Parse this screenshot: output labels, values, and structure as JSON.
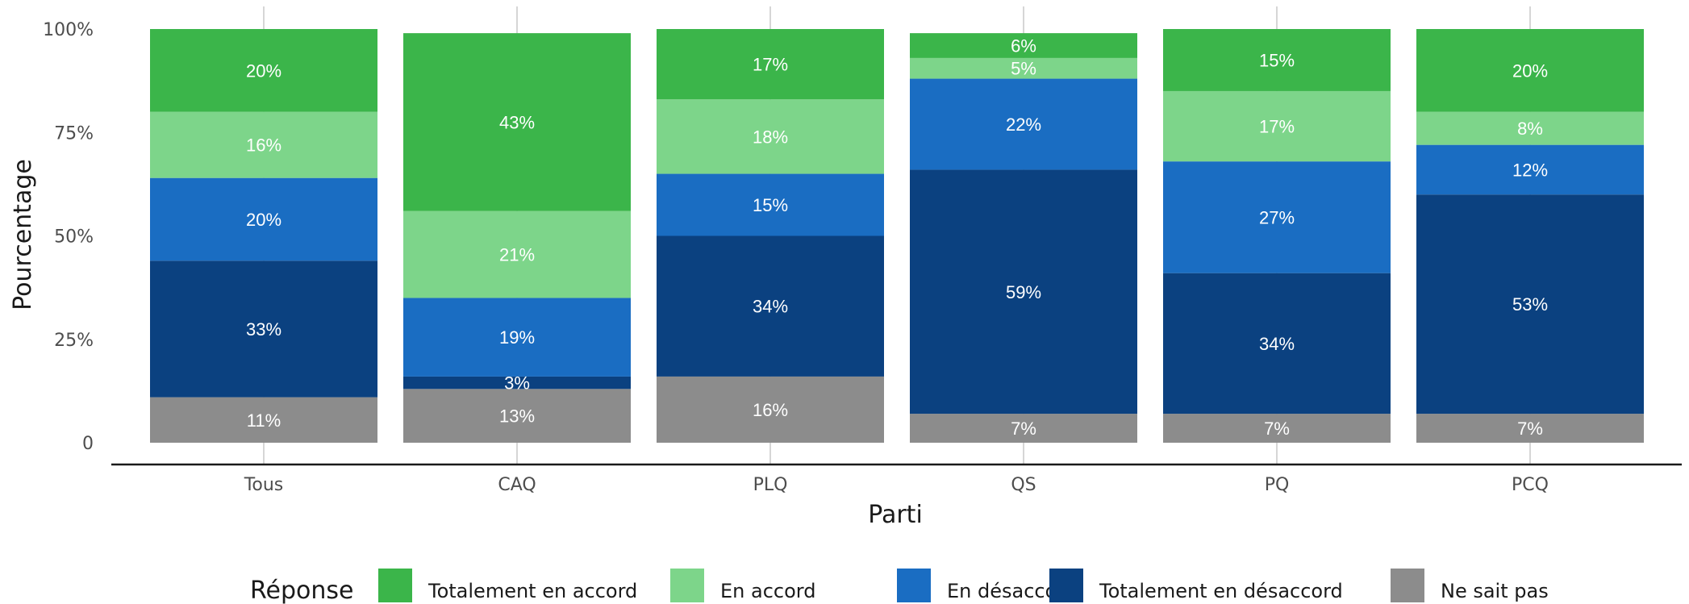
{
  "chart_data": {
    "type": "bar",
    "stacked": true,
    "xlabel": "Parti",
    "ylabel": "Pourcentage",
    "ylim": [
      0,
      100
    ],
    "y_ticks": [
      {
        "value": 0,
        "label": "0"
      },
      {
        "value": 25,
        "label": "25%"
      },
      {
        "value": 50,
        "label": "50%"
      },
      {
        "value": 75,
        "label": "75%"
      },
      {
        "value": 100,
        "label": "100%"
      }
    ],
    "grid": "vertical lines at categories",
    "categories": [
      "Tous",
      "CAQ",
      "PLQ",
      "QS",
      "PQ",
      "PCQ"
    ],
    "legend_title": "Réponse",
    "legend_position": "bottom",
    "series": [
      {
        "name": "Totalement en accord",
        "color": "#3bb54a",
        "values": [
          20,
          43,
          17,
          6,
          15,
          20
        ],
        "labels": [
          "20%",
          "43%",
          "17%",
          "6%",
          "15%",
          "20%"
        ]
      },
      {
        "name": "En accord",
        "color": "#7dd58a",
        "values": [
          16,
          21,
          18,
          5,
          17,
          8
        ],
        "labels": [
          "16%",
          "21%",
          "18%",
          "5%",
          "17%",
          "8%"
        ]
      },
      {
        "name": "En désaccord",
        "color": "#1a6dc2",
        "values": [
          20,
          19,
          15,
          22,
          27,
          12
        ],
        "labels": [
          "20%",
          "19%",
          "15%",
          "22%",
          "27%",
          "12%"
        ]
      },
      {
        "name": "Totalement en désaccord",
        "color": "#0b4180",
        "values": [
          33,
          3,
          34,
          59,
          34,
          53
        ],
        "labels": [
          "33%",
          "3%",
          "34%",
          "59%",
          "34%",
          "53%"
        ]
      },
      {
        "name": "Ne sait pas",
        "color": "#8c8c8c",
        "values": [
          11,
          13,
          16,
          7,
          7,
          7
        ],
        "labels": [
          "11%",
          "13%",
          "16%",
          "7%",
          "7%",
          "7%"
        ]
      }
    ]
  }
}
